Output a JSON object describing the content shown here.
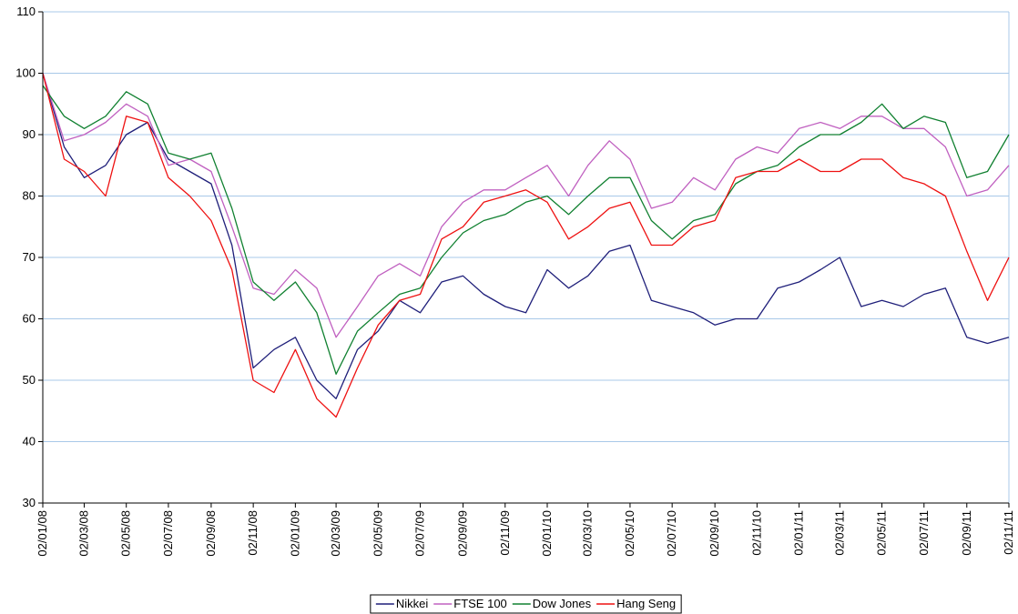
{
  "chart_data": {
    "type": "line",
    "x": [
      "02/01/08",
      "02/02/08",
      "02/03/08",
      "02/04/08",
      "02/05/08",
      "02/06/08",
      "02/07/08",
      "02/08/08",
      "02/09/08",
      "02/10/08",
      "02/11/08",
      "02/12/08",
      "02/01/09",
      "02/02/09",
      "02/03/09",
      "02/04/09",
      "02/05/09",
      "02/06/09",
      "02/07/09",
      "02/08/09",
      "02/09/09",
      "02/10/09",
      "02/11/09",
      "02/12/09",
      "02/01/10",
      "02/02/10",
      "02/03/10",
      "02/04/10",
      "02/05/10",
      "02/06/10",
      "02/07/10",
      "02/08/10",
      "02/09/10",
      "02/10/10",
      "02/11/10",
      "02/12/10",
      "02/01/11",
      "02/02/11",
      "02/03/11",
      "02/04/11",
      "02/05/11",
      "02/06/11",
      "02/07/11",
      "02/08/11",
      "02/09/11",
      "02/10/11",
      "02/11/11"
    ],
    "series": [
      {
        "name": "Nikkei",
        "color": "#1f1f7a",
        "values": [
          100,
          88,
          83,
          85,
          90,
          92,
          86,
          84,
          82,
          72,
          52,
          55,
          57,
          50,
          47,
          55,
          58,
          63,
          61,
          66,
          67,
          64,
          62,
          61,
          68,
          65,
          67,
          71,
          72,
          63,
          62,
          61,
          59,
          60,
          60,
          65,
          66,
          68,
          70,
          62,
          63,
          62,
          64,
          65,
          57,
          56,
          57
        ]
      },
      {
        "name": "FTSE 100",
        "color": "#c060c0",
        "values": [
          100,
          89,
          90,
          92,
          95,
          93,
          85,
          86,
          84,
          75,
          65,
          64,
          68,
          65,
          57,
          62,
          67,
          69,
          67,
          75,
          79,
          81,
          81,
          83,
          85,
          80,
          85,
          89,
          86,
          78,
          79,
          83,
          81,
          86,
          88,
          87,
          91,
          92,
          91,
          93,
          93,
          91,
          91,
          88,
          80,
          81,
          85
        ]
      },
      {
        "name": "Dow Jones",
        "color": "#108030",
        "values": [
          98,
          93,
          91,
          93,
          97,
          95,
          87,
          86,
          87,
          78,
          66,
          63,
          66,
          61,
          51,
          58,
          61,
          64,
          65,
          70,
          74,
          76,
          77,
          79,
          80,
          77,
          80,
          83,
          83,
          76,
          73,
          76,
          77,
          82,
          84,
          85,
          88,
          90,
          90,
          92,
          95,
          91,
          93,
          92,
          83,
          84,
          90
        ]
      },
      {
        "name": "Hang Seng",
        "color": "#ee1111",
        "values": [
          100,
          86,
          84,
          80,
          93,
          92,
          83,
          80,
          76,
          68,
          50,
          48,
          55,
          47,
          44,
          52,
          59,
          63,
          64,
          73,
          75,
          79,
          80,
          81,
          79,
          73,
          75,
          78,
          79,
          72,
          72,
          75,
          76,
          83,
          84,
          84,
          86,
          84,
          84,
          86,
          86,
          83,
          82,
          80,
          71,
          63,
          70
        ]
      }
    ],
    "xlim": [
      "02/01/08",
      "02/11/11"
    ],
    "xticks": [
      "02/01/08",
      "02/03/08",
      "02/05/08",
      "02/07/08",
      "02/09/08",
      "02/11/08",
      "02/01/09",
      "02/03/09",
      "02/05/09",
      "02/07/09",
      "02/09/09",
      "02/11/09",
      "02/01/10",
      "02/03/10",
      "02/05/10",
      "02/07/10",
      "02/09/10",
      "02/11/10",
      "02/01/11",
      "02/03/11",
      "02/05/11",
      "02/07/11",
      "02/09/11",
      "02/11/11"
    ],
    "ylim": [
      30,
      110
    ],
    "yticks": [
      30,
      40,
      50,
      60,
      70,
      80,
      90,
      100,
      110
    ],
    "grid": true,
    "legend": "bottom"
  }
}
